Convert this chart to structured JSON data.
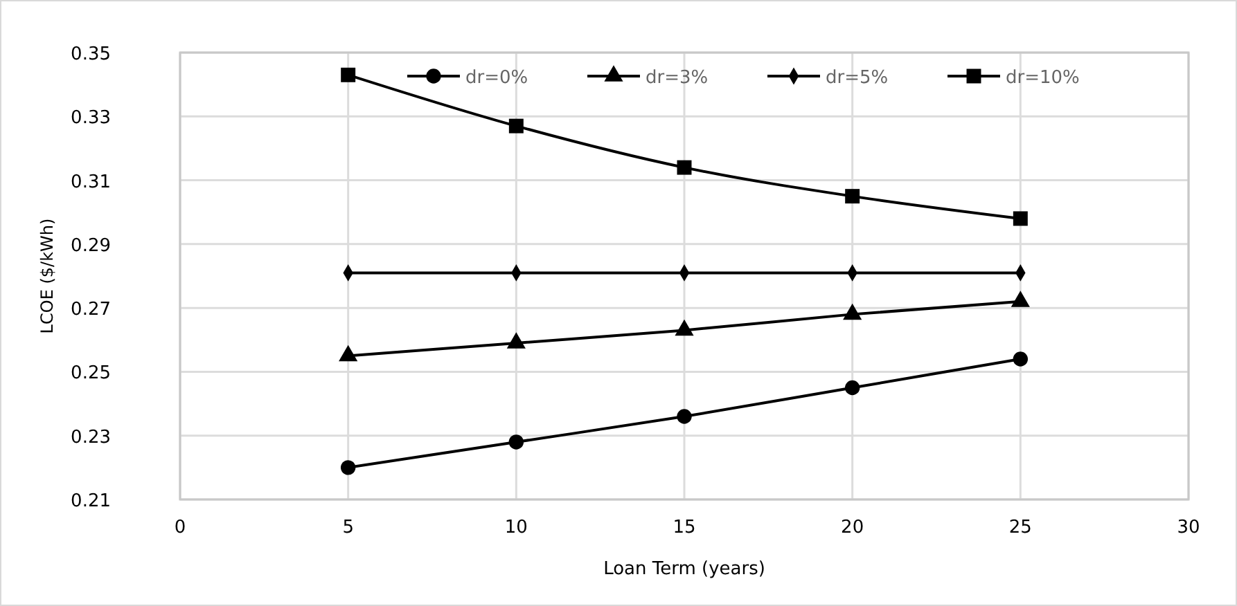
{
  "chart_data": {
    "type": "line",
    "xlabel": "Loan Term (years)",
    "ylabel": "LCOE ($/kWh)",
    "x": [
      5,
      10,
      15,
      20,
      25
    ],
    "series": [
      {
        "name": "dr=0%",
        "color": "#000000",
        "marker": "circle",
        "values": [
          0.22,
          0.228,
          0.236,
          0.245,
          0.254
        ]
      },
      {
        "name": "dr=3%",
        "color": "#000000",
        "marker": "triangle",
        "values": [
          0.255,
          0.259,
          0.263,
          0.268,
          0.272
        ]
      },
      {
        "name": "dr=5%",
        "color": "#000000",
        "marker": "diamond",
        "values": [
          0.281,
          0.281,
          0.281,
          0.281,
          0.281
        ]
      },
      {
        "name": "dr=10%",
        "color": "#000000",
        "marker": "square",
        "values": [
          0.343,
          0.327,
          0.314,
          0.305,
          0.298
        ]
      }
    ],
    "xlim": [
      0,
      30
    ],
    "xticks": [
      0,
      5,
      10,
      15,
      20,
      25,
      30
    ],
    "ylim": [
      0.21,
      0.35
    ],
    "yticks": [
      0.21,
      0.23,
      0.25,
      0.27,
      0.29,
      0.31,
      0.33,
      0.35
    ],
    "grid": true,
    "legend": "top"
  }
}
